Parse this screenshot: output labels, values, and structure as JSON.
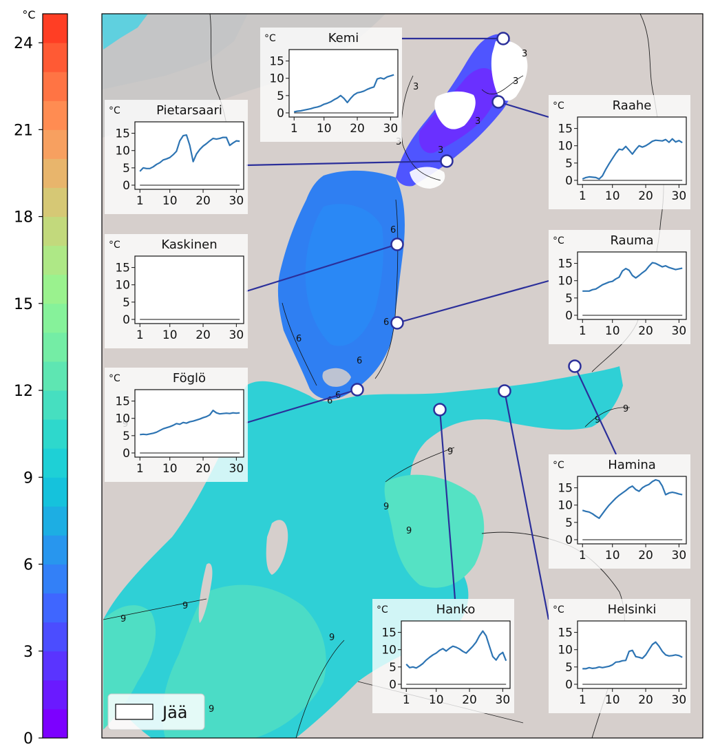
{
  "colorbar": {
    "unit": "°C",
    "ticks": [
      "0",
      "3",
      "6",
      "9",
      "12",
      "15",
      "18",
      "21",
      "24"
    ],
    "range": [
      0,
      25
    ],
    "band_colors": [
      "#7c00ff",
      "#6a1aff",
      "#5a34ff",
      "#4b4dff",
      "#3f66ff",
      "#3380f7",
      "#2896ee",
      "#1daee3",
      "#15c2dc",
      "#1ed0d6",
      "#2ed8cc",
      "#46dfc0",
      "#5ee6b2",
      "#74eda5",
      "#86f29a",
      "#9af28e",
      "#aee886",
      "#c2d97c",
      "#d6c875",
      "#e8b56c",
      "#f7a060",
      "#ff8c52",
      "#ff7444",
      "#ff5a34",
      "#ff3e24"
    ]
  },
  "legend": {
    "ice_label": "Jää"
  },
  "isotherm_labels": [
    "3",
    "6",
    "9"
  ],
  "stations": [
    {
      "name": "Kemi",
      "unit": "°C",
      "yticks": [
        "0",
        "5",
        "10",
        "15"
      ],
      "xticks": [
        "1",
        "10",
        "20",
        "30"
      ],
      "color": "#2d74b3",
      "values": [
        0.3,
        0.5,
        0.6,
        0.8,
        1.0,
        1.2,
        1.5,
        1.7,
        2.0,
        2.5,
        2.8,
        3.2,
        3.8,
        4.3,
        5.0,
        4.2,
        3.0,
        4.2,
        5.2,
        5.8,
        6.0,
        6.3,
        6.8,
        7.2,
        7.5,
        9.8,
        10.1,
        9.8,
        10.4,
        10.7,
        11.0
      ]
    },
    {
      "name": "Pietarsaari",
      "unit": "°C",
      "yticks": [
        "0",
        "5",
        "10",
        "15"
      ],
      "xticks": [
        "1",
        "10",
        "20",
        "30"
      ],
      "color": "#2d74b3",
      "values": [
        4.0,
        5.0,
        4.8,
        4.8,
        5.3,
        6.0,
        6.5,
        7.3,
        7.6,
        8.0,
        8.8,
        9.8,
        12.8,
        14.3,
        14.5,
        11.5,
        6.8,
        9.0,
        10.3,
        11.3,
        12.0,
        12.8,
        13.5,
        13.3,
        13.5,
        13.8,
        13.8,
        11.5,
        12.2,
        12.8,
        12.7
      ]
    },
    {
      "name": "Raahe",
      "unit": "°C",
      "yticks": [
        "0",
        "5",
        "10",
        "15"
      ],
      "xticks": [
        "1",
        "10",
        "20",
        "30"
      ],
      "color": "#2d74b3",
      "values": [
        0.4,
        0.8,
        1.0,
        0.9,
        0.8,
        0.4,
        1.3,
        3.2,
        4.8,
        6.3,
        7.8,
        9.0,
        8.8,
        9.8,
        8.7,
        7.6,
        8.9,
        10.0,
        9.6,
        10.0,
        10.6,
        11.3,
        11.6,
        11.5,
        11.4,
        11.8,
        11.0,
        12.0,
        11.1,
        11.5,
        10.9
      ]
    },
    {
      "name": "Kaskinen",
      "unit": "°C",
      "yticks": [
        "0",
        "5",
        "10",
        "15"
      ],
      "xticks": [
        "1",
        "10",
        "20",
        "30"
      ],
      "color": "#2d74b3",
      "values": []
    },
    {
      "name": "Rauma",
      "unit": "°C",
      "yticks": [
        "0",
        "5",
        "10",
        "15"
      ],
      "xticks": [
        "1",
        "10",
        "20",
        "30"
      ],
      "color": "#2d74b3",
      "values": [
        7.0,
        7.0,
        7.0,
        7.4,
        7.6,
        8.2,
        8.8,
        9.2,
        9.6,
        9.8,
        10.5,
        11.0,
        12.8,
        13.5,
        13.0,
        11.5,
        10.8,
        11.5,
        12.3,
        13.0,
        14.2,
        15.2,
        15.0,
        14.5,
        14.0,
        14.3,
        13.8,
        13.5,
        13.2,
        13.4,
        13.6
      ]
    },
    {
      "name": "Föglö",
      "unit": "°C",
      "yticks": [
        "0",
        "5",
        "10",
        "15"
      ],
      "xticks": [
        "1",
        "10",
        "20",
        "30"
      ],
      "color": "#2d74b3",
      "values": [
        5.3,
        5.4,
        5.3,
        5.5,
        5.7,
        6.0,
        6.5,
        7.0,
        7.3,
        7.6,
        8.0,
        8.5,
        8.3,
        8.8,
        8.6,
        9.0,
        9.2,
        9.5,
        9.8,
        10.2,
        10.5,
        11.0,
        12.3,
        11.6,
        11.3,
        11.4,
        11.5,
        11.4,
        11.6,
        11.5,
        11.6
      ]
    },
    {
      "name": "Hamina",
      "unit": "°C",
      "yticks": [
        "0",
        "5",
        "10",
        "15"
      ],
      "xticks": [
        "1",
        "10",
        "20",
        "30"
      ],
      "color": "#2d74b3",
      "values": [
        8.5,
        8.2,
        8.0,
        7.5,
        6.8,
        6.2,
        7.5,
        8.8,
        10.0,
        11.0,
        12.0,
        12.8,
        13.5,
        14.2,
        15.0,
        15.5,
        14.5,
        14.0,
        15.0,
        15.6,
        16.0,
        16.8,
        17.3,
        17.0,
        15.5,
        13.0,
        13.5,
        13.7,
        13.5,
        13.2,
        13.0
      ]
    },
    {
      "name": "Hanko",
      "unit": "°C",
      "yticks": [
        "0",
        "5",
        "10",
        "15"
      ],
      "xticks": [
        "1",
        "10",
        "20",
        "30"
      ],
      "color": "#2d74b3",
      "values": [
        5.8,
        4.8,
        5.0,
        4.7,
        5.3,
        6.0,
        7.0,
        7.8,
        8.5,
        9.0,
        9.8,
        10.3,
        9.6,
        10.4,
        11.0,
        10.7,
        10.2,
        9.5,
        9.0,
        10.0,
        11.0,
        12.2,
        14.0,
        15.4,
        14.0,
        11.0,
        8.0,
        7.0,
        8.5,
        9.2,
        6.8
      ]
    },
    {
      "name": "Helsinki",
      "unit": "°C",
      "yticks": [
        "0",
        "5",
        "10",
        "15"
      ],
      "xticks": [
        "1",
        "10",
        "20",
        "30"
      ],
      "color": "#2d74b3",
      "values": [
        4.5,
        4.5,
        4.8,
        4.6,
        4.7,
        5.0,
        4.8,
        5.0,
        5.2,
        5.6,
        6.4,
        6.5,
        6.8,
        6.9,
        9.5,
        9.8,
        8.0,
        7.8,
        7.5,
        8.5,
        10.0,
        11.5,
        12.2,
        11.0,
        9.5,
        8.5,
        8.2,
        8.3,
        8.5,
        8.3,
        7.8
      ]
    }
  ]
}
